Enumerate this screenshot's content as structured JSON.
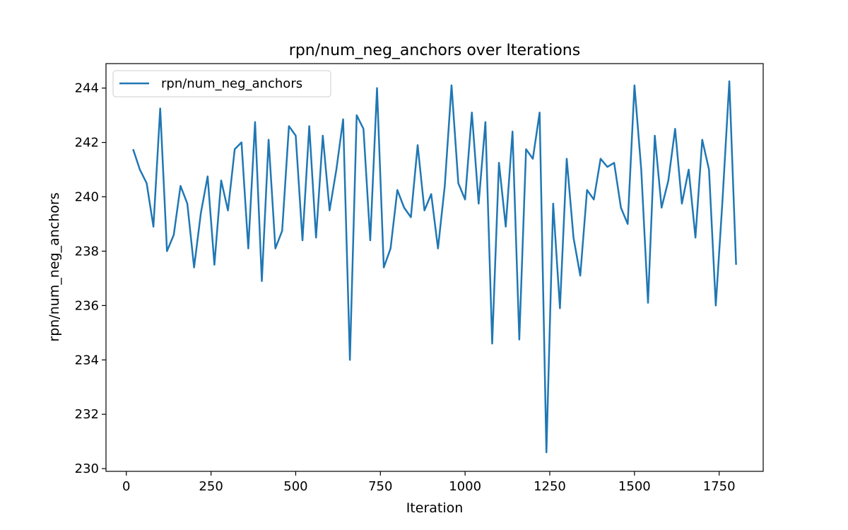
{
  "chart_data": {
    "type": "line",
    "title": "rpn/num_neg_anchors over Iterations",
    "xlabel": "Iteration",
    "ylabel": "rpn/num_neg_anchors",
    "xlim": [
      -60,
      1880
    ],
    "ylim": [
      229.9,
      244.9
    ],
    "xticks": [
      0,
      250,
      500,
      750,
      1000,
      1250,
      1500,
      1750
    ],
    "yticks": [
      230,
      232,
      234,
      236,
      238,
      240,
      242,
      244
    ],
    "grid": false,
    "legend_position": "top-left",
    "color": "#1f77b4",
    "series": [
      {
        "name": "rpn/num_neg_anchors",
        "x": [
          20,
          40,
          60,
          80,
          100,
          120,
          140,
          160,
          180,
          200,
          220,
          240,
          260,
          280,
          300,
          320,
          340,
          360,
          380,
          400,
          420,
          440,
          460,
          480,
          500,
          520,
          540,
          560,
          580,
          600,
          620,
          640,
          660,
          680,
          700,
          720,
          740,
          760,
          780,
          800,
          820,
          840,
          860,
          880,
          900,
          920,
          940,
          960,
          980,
          1000,
          1020,
          1040,
          1060,
          1080,
          1100,
          1120,
          1140,
          1160,
          1180,
          1200,
          1220,
          1240,
          1260,
          1280,
          1300,
          1320,
          1340,
          1360,
          1380,
          1400,
          1420,
          1440,
          1460,
          1480,
          1500,
          1520,
          1540,
          1560,
          1580,
          1600,
          1620,
          1640,
          1660,
          1680,
          1700,
          1720,
          1740,
          1760,
          1780,
          1800
        ],
        "y": [
          241.75,
          241.0,
          240.5,
          238.9,
          243.25,
          238.0,
          238.6,
          240.4,
          239.75,
          237.4,
          239.4,
          240.75,
          237.5,
          240.6,
          239.5,
          241.75,
          242.0,
          238.1,
          242.75,
          236.9,
          242.1,
          238.1,
          238.75,
          242.6,
          242.25,
          238.4,
          242.6,
          238.5,
          242.25,
          239.5,
          241.0,
          242.85,
          234.0,
          243.0,
          242.5,
          238.4,
          244.0,
          237.4,
          238.1,
          240.25,
          239.6,
          239.25,
          241.9,
          239.5,
          240.1,
          238.1,
          240.4,
          244.1,
          240.5,
          239.9,
          243.1,
          239.75,
          242.75,
          234.6,
          241.25,
          238.9,
          242.4,
          234.75,
          241.75,
          241.4,
          243.1,
          230.6,
          239.75,
          235.9,
          241.4,
          238.5,
          237.1,
          240.25,
          239.9,
          241.4,
          241.1,
          241.25,
          239.6,
          239.0,
          244.1,
          241.0,
          236.1,
          242.25,
          239.6,
          240.6,
          242.5,
          239.75,
          241.0,
          238.5,
          242.1,
          241.0,
          236.0,
          239.9,
          244.25,
          237.5
        ]
      }
    ]
  }
}
